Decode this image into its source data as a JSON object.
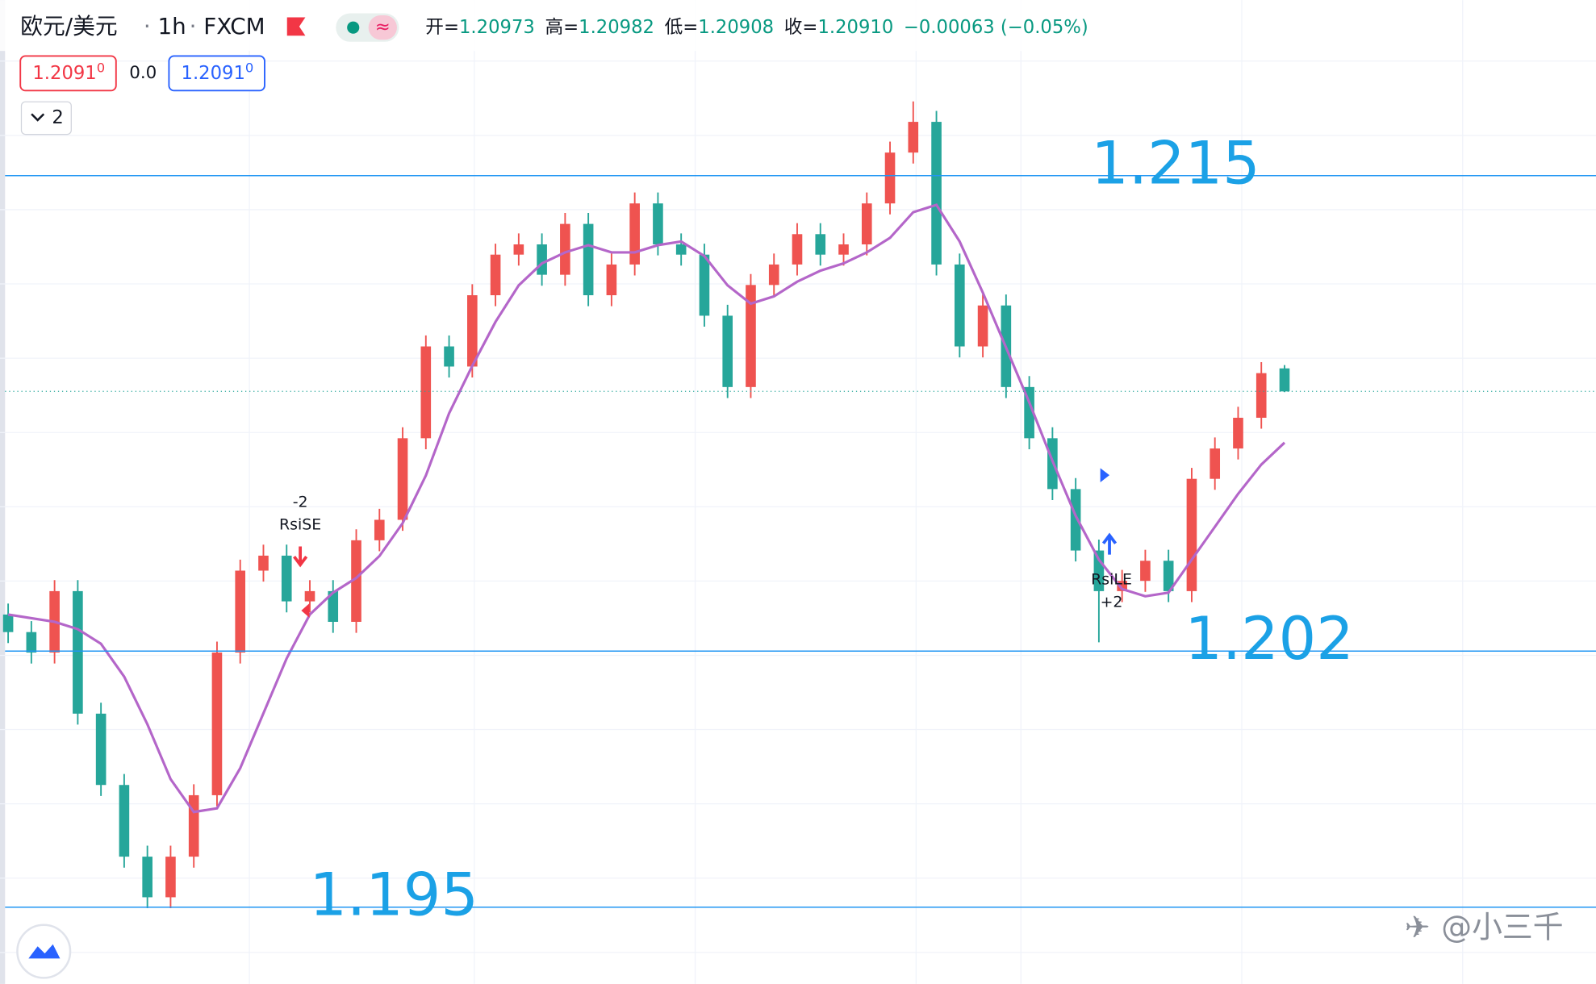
{
  "header": {
    "symbol": "欧元/美元",
    "interval": "1h",
    "source": "FXCM",
    "ohlc": [
      {
        "label": "开=",
        "value": "1.20973"
      },
      {
        "label": "高=",
        "value": "1.20982"
      },
      {
        "label": "低=",
        "value": "1.20908"
      },
      {
        "label": "收=",
        "value": "1.20910"
      }
    ],
    "change": "−0.00063 (−0.05%)"
  },
  "toolbar": {
    "sell_price": "1.2091",
    "sell_price_small": "0",
    "spread": "0.0",
    "buy_price": "1.2091",
    "buy_price_small": "0",
    "indicators_count": "2"
  },
  "signals": {
    "short_qty": "-2",
    "short_label": "RsiSE",
    "long_label": "RsiLE",
    "long_qty": "+2"
  },
  "watermark": "@小三千",
  "chart_data": {
    "type": "candlestick",
    "up_color": "#ef5350",
    "down_color": "#26a69a",
    "ylim": [
      1.1929,
      1.2198
    ],
    "open": [
      1.203,
      1.20252,
      1.20196,
      1.20364,
      1.20029,
      1.19834,
      1.19638,
      1.19527,
      1.19638,
      1.19806,
      1.20196,
      1.2042,
      1.20461,
      1.20336,
      1.20364,
      1.2028,
      1.20503,
      1.20559,
      1.20782,
      1.21033,
      1.20978,
      1.21173,
      1.21284,
      1.21312,
      1.21229,
      1.21368,
      1.21173,
      1.21257,
      1.21424,
      1.21312,
      1.21284,
      1.21117,
      1.20922,
      1.21201,
      1.21257,
      1.2134,
      1.21284,
      1.21312,
      1.21424,
      1.21563,
      1.21647,
      1.21257,
      1.21033,
      1.21145,
      1.20922,
      1.20782,
      1.20643,
      1.20475,
      1.20364,
      1.20392,
      1.20447,
      1.20364,
      1.20671,
      1.20754,
      1.20838,
      1.20973
    ],
    "high": [
      1.2033,
      1.20282,
      1.20394,
      1.20394,
      1.20059,
      1.19864,
      1.19668,
      1.19668,
      1.19836,
      1.20226,
      1.2045,
      1.20491,
      1.20491,
      1.20394,
      1.20394,
      1.20533,
      1.20589,
      1.20812,
      1.21063,
      1.21063,
      1.21203,
      1.21314,
      1.21342,
      1.21342,
      1.21398,
      1.21398,
      1.21287,
      1.21454,
      1.21454,
      1.21342,
      1.21314,
      1.21147,
      1.21231,
      1.21287,
      1.2137,
      1.2137,
      1.21342,
      1.21454,
      1.21593,
      1.21703,
      1.21677,
      1.21287,
      1.21175,
      1.21175,
      1.20952,
      1.20812,
      1.20673,
      1.20505,
      1.20422,
      1.20477,
      1.20477,
      1.20701,
      1.20784,
      1.20868,
      1.2099,
      1.20982
    ],
    "low": [
      1.20222,
      1.20166,
      1.20166,
      1.19999,
      1.19804,
      1.19608,
      1.19497,
      1.19497,
      1.19608,
      1.19776,
      1.20166,
      1.2039,
      1.20306,
      1.20306,
      1.2025,
      1.2025,
      1.20473,
      1.20529,
      1.20752,
      1.20948,
      1.20948,
      1.21143,
      1.21254,
      1.21199,
      1.21199,
      1.21143,
      1.21143,
      1.21227,
      1.21282,
      1.21254,
      1.21087,
      1.20892,
      1.20892,
      1.21171,
      1.21227,
      1.21254,
      1.21254,
      1.21282,
      1.21394,
      1.21533,
      1.21227,
      1.21003,
      1.21003,
      1.20892,
      1.20752,
      1.20613,
      1.20445,
      1.20224,
      1.20334,
      1.20362,
      1.20334,
      1.20334,
      1.20641,
      1.20724,
      1.20808,
      1.20908
    ],
    "close": [
      1.20252,
      1.20196,
      1.20364,
      1.20029,
      1.19834,
      1.19638,
      1.19527,
      1.19638,
      1.19806,
      1.20196,
      1.2042,
      1.20461,
      1.20336,
      1.20364,
      1.2028,
      1.20503,
      1.20559,
      1.20782,
      1.21033,
      1.20978,
      1.21173,
      1.21284,
      1.21312,
      1.21229,
      1.21368,
      1.21173,
      1.21257,
      1.21424,
      1.21312,
      1.21284,
      1.21117,
      1.20922,
      1.21201,
      1.21257,
      1.2134,
      1.21284,
      1.21312,
      1.21424,
      1.21563,
      1.21647,
      1.21257,
      1.21033,
      1.21145,
      1.20922,
      1.20782,
      1.20643,
      1.20475,
      1.20364,
      1.20392,
      1.20447,
      1.20364,
      1.20671,
      1.20754,
      1.20838,
      1.2096,
      1.2091
    ],
    "overlay": {
      "color": "#b466c9",
      "values": [
        1.203,
        1.2029,
        1.2028,
        1.2026,
        1.2022,
        1.2013,
        1.2,
        1.1985,
        1.1976,
        1.1977,
        1.1988,
        1.2003,
        1.2018,
        1.203,
        1.2036,
        1.204,
        1.2046,
        1.2055,
        1.2068,
        1.2085,
        1.2098,
        1.211,
        1.212,
        1.2126,
        1.2129,
        1.2131,
        1.2129,
        1.2129,
        1.2131,
        1.2132,
        1.2128,
        1.212,
        1.2115,
        1.2117,
        1.2121,
        1.2124,
        1.2126,
        1.2129,
        1.2133,
        1.214,
        1.2142,
        1.2132,
        1.2118,
        1.2103,
        1.2088,
        1.2072,
        1.2057,
        1.2045,
        1.2037,
        1.2035,
        1.2036,
        1.2045,
        1.2054,
        1.2063,
        1.2071,
        1.2077
      ]
    },
    "levels": [
      1.215,
      1.202,
      1.195
    ],
    "level_color": "#2196f3",
    "level_label_color": "#1ba1e6",
    "last_price": 1.2091
  }
}
